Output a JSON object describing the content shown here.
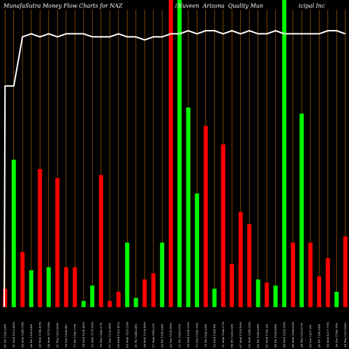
{
  "header": {
    "left_title": "MunafaSutra  Money Flow  Charts for NAZ",
    "right_title": "(Nuveen  Arizona  Quality Mun                    icipal Inc"
  },
  "chart_data": {
    "type": "bar",
    "title": "MunafaSutra  Money Flow  Charts for NAZ",
    "subtitle": "(Nuveen  Arizona  Quality Mun                    icipal Inc",
    "background": "#000000",
    "bar_colors": {
      "up": "#00ff00",
      "down": "#ff0000"
    },
    "gridline_color": "#b06000",
    "line_color": "#ffffff",
    "categories": [
      "01 Fri 1120.28%",
      "31 Wed 1215.88%",
      "29 Mon 1290.14%",
      "28 Fri 1182.08%",
      "26 Wed 1146.83%",
      "24 Mon 1172.08%",
      "21 Thu 1218.09%",
      "19 Tue 1164.4%",
      "17 Fri 1180.17%",
      "14 Wed 1230.40%",
      "12 Mon 1170.43%",
      "10 Thu 1268.37%",
      "07 Tue 1133.08%",
      "05 Wed 1181.41%",
      "03 Mon 1133.23%",
      "31 Fri 1284.28%",
      "29 Wed 1279.48%",
      "27 Mon 1183.2%",
      "25 Fri 1189.29%",
      "23 Tue 1155.08%",
      "21 Fri 1205.51%",
      "19 Wed 1250.13%",
      "17 Tue 1189.78%",
      "15 Fri 1236.24%",
      "13 Wed 1108.4%",
      "11 Mon 1166.17%",
      "09 Fri 1222.32%",
      "07 Wed 1119.59%",
      "05 Mon 1248.22%",
      "03 Fri 1285.09%",
      "01 Wed 1192.2%",
      "30 Fri 1228.88%",
      "28 Wed 1229.18%",
      "26 Mon 1198.02%",
      "24 Thu 1216.07%",
      "22 Tue 1207.2%",
      "20 Fri 1190.08%",
      "18 Wed 1217.75%",
      "16 Tue 1169.78%",
      "14 Thu 1215.08%"
    ],
    "series": [
      {
        "values": [
          6,
          48,
          18,
          12,
          45,
          13,
          42,
          13,
          13,
          2,
          7,
          43,
          2,
          5,
          21,
          3,
          9,
          11,
          21,
          100,
          100,
          65,
          37,
          59,
          6,
          53,
          14,
          31,
          27,
          9,
          8,
          7,
          100,
          21,
          63,
          21,
          10,
          16,
          5,
          23
        ],
        "directions": [
          "down",
          "up",
          "down",
          "up",
          "down",
          "up",
          "down",
          "down",
          "down",
          "up",
          "up",
          "down",
          "down",
          "down",
          "up",
          "up",
          "down",
          "down",
          "up",
          "down",
          "up",
          "up",
          "up",
          "down",
          "up",
          "down",
          "down",
          "down",
          "down",
          "up",
          "down",
          "up",
          "up",
          "down",
          "up",
          "down",
          "down",
          "down",
          "up",
          "down"
        ]
      }
    ],
    "line_series": [
      72,
      72,
      88,
      89,
      88,
      89,
      88,
      89,
      89,
      89,
      88,
      88,
      88,
      89,
      88,
      88,
      87,
      88,
      88,
      89,
      89,
      90,
      89,
      90,
      90,
      89,
      90,
      89,
      90,
      89,
      89,
      90,
      89,
      89,
      89,
      89,
      89,
      90,
      90,
      89
    ],
    "ylim": [
      0,
      100
    ],
    "xlabel": "",
    "ylabel": "",
    "grid": true,
    "legend": "none"
  }
}
